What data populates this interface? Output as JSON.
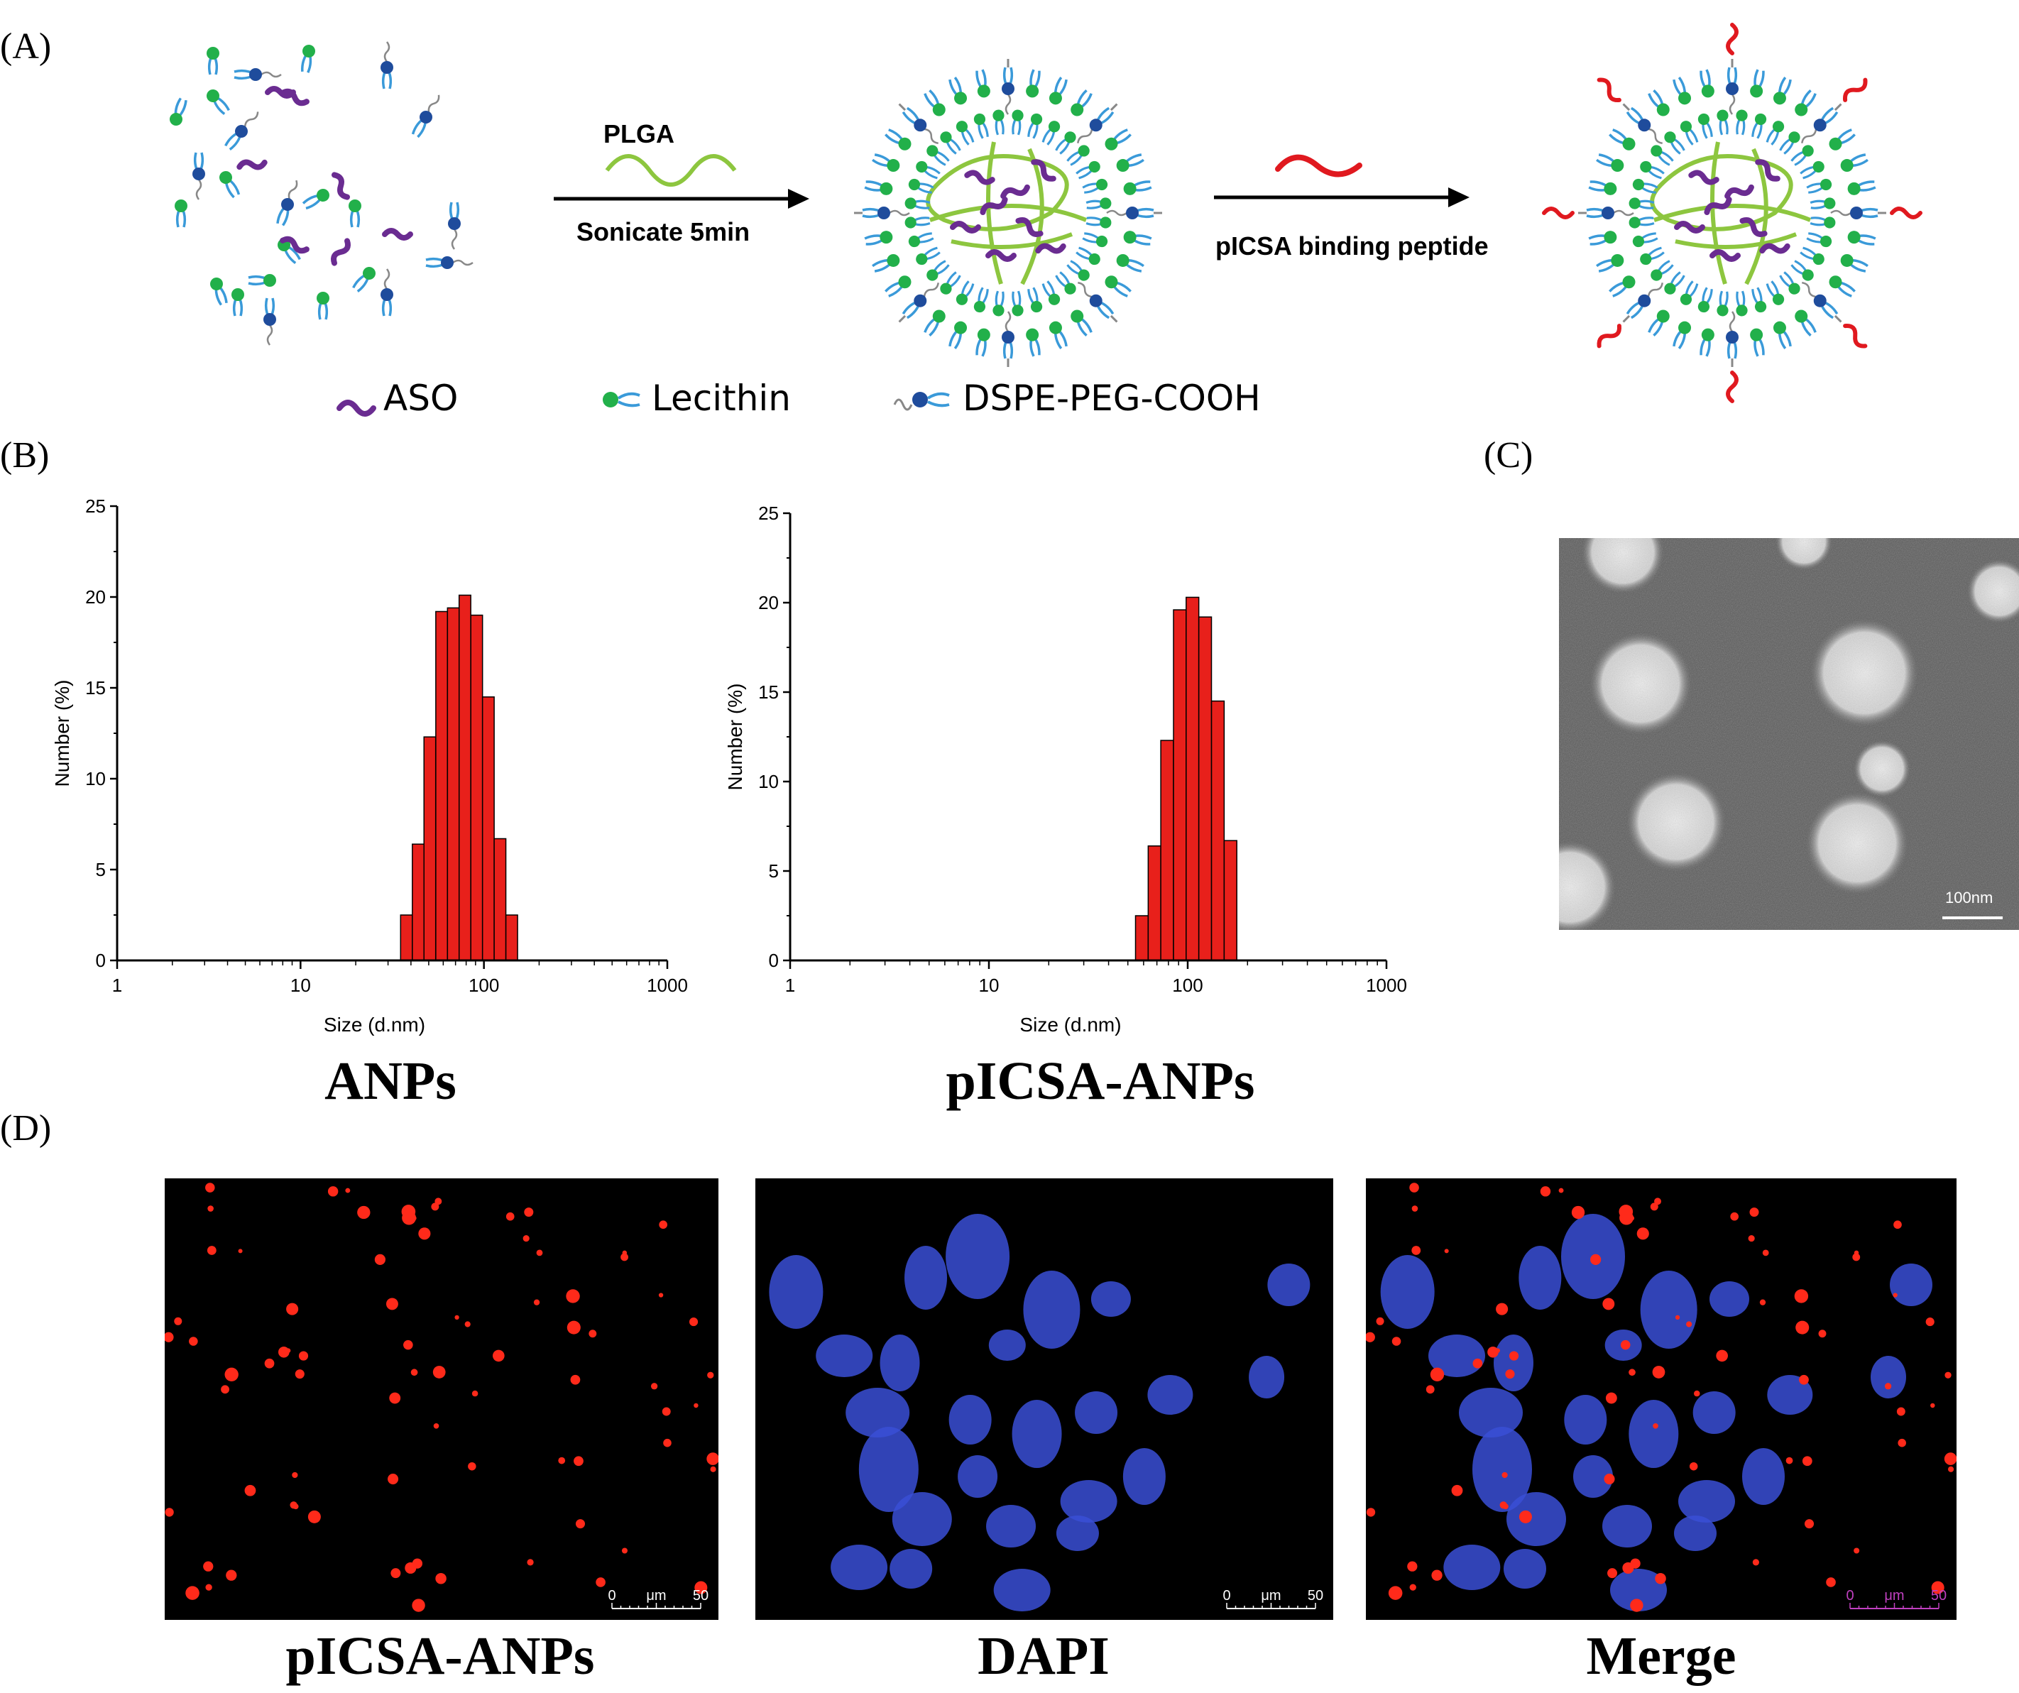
{
  "panels": {
    "a": "(A)",
    "b": "(B)",
    "c": "(C)",
    "d": "(D)"
  },
  "schematic": {
    "arrow1_top": "PLGA",
    "arrow1_bottom": "Sonicate 5min",
    "arrow2_bottom": "pICSA binding peptide",
    "legend": {
      "aso": "ASO",
      "lecithin": "Lecithin",
      "dspe": "DSPE-PEG-COOH"
    },
    "colors": {
      "aso": "#6a2c91",
      "lecithin_head": "#22b04a",
      "dspe_head": "#1f4c9c",
      "tail": "#3a9ad9",
      "plga": "#8dc63f",
      "peptide": "#e0191f"
    }
  },
  "tem": {
    "scale_label": "100nm"
  },
  "chart_data": [
    {
      "type": "bar",
      "title": "ANPs",
      "xlabel": "Size (d.nm)",
      "ylabel": "Number (%)",
      "xscale": "log",
      "xlim": [
        1,
        1000
      ],
      "ylim": [
        0,
        25
      ],
      "xticks": [
        "1",
        "10",
        "100",
        "1000"
      ],
      "yticks": [
        "0",
        "5",
        "10",
        "15",
        "20",
        "25"
      ],
      "bar_color": "#e8201b",
      "x": [
        37.8,
        43.8,
        50.7,
        58.8,
        68.1,
        78.8,
        91.3,
        105.7,
        122.4,
        141.8
      ],
      "values": [
        2.5,
        6.4,
        12.3,
        19.2,
        19.4,
        20.1,
        19.0,
        14.5,
        6.7,
        2.5
      ]
    },
    {
      "type": "bar",
      "title": "pICSA-ANPs",
      "xlabel": "Size (d.nm)",
      "ylabel": "Number (%)",
      "xscale": "log",
      "xlim": [
        1,
        1000
      ],
      "ylim": [
        0,
        25
      ],
      "xticks": [
        "1",
        "10",
        "100",
        "1000"
      ],
      "yticks": [
        "0",
        "5",
        "10",
        "15",
        "20",
        "25"
      ],
      "bar_color": "#e8201b",
      "x": [
        58.8,
        68.1,
        78.8,
        91.3,
        105.7,
        122.4,
        141.8,
        164.2
      ],
      "values": [
        2.5,
        6.4,
        12.3,
        19.6,
        20.3,
        19.2,
        14.5,
        6.7
      ]
    }
  ],
  "confocal": {
    "panels": [
      {
        "label": "pICSA-ANPs",
        "scale": [
          "0",
          "μm",
          "50"
        ],
        "scale_color": "#ffffff"
      },
      {
        "label": "DAPI",
        "scale": [
          "0",
          "μm",
          "50"
        ],
        "scale_color": "#ffffff"
      },
      {
        "label": "Merge",
        "scale": [
          "0",
          "μm",
          "50"
        ],
        "scale_color": "#c040c0"
      }
    ]
  }
}
